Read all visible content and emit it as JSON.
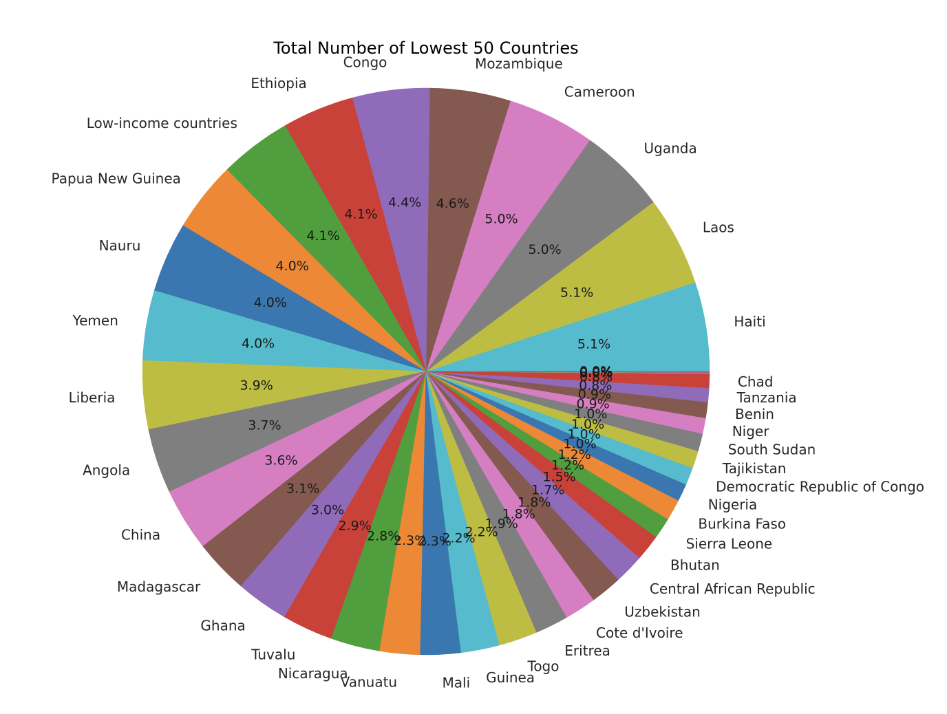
{
  "chart_data": {
    "type": "pie",
    "title": "Total Number of Lowest 50 Countries",
    "start_angle_deg": 0,
    "direction": "counterclockwise",
    "legend": "none",
    "slices": [
      {
        "label": "Haiti",
        "value": 5.1,
        "pct": "5.1%",
        "color": "#56bbcc"
      },
      {
        "label": "Laos",
        "value": 5.1,
        "pct": "5.1%",
        "color": "#bdbd44"
      },
      {
        "label": "Uganda",
        "value": 5.0,
        "pct": "5.0%",
        "color": "#7f7f7f"
      },
      {
        "label": "Cameroon",
        "value": 5.0,
        "pct": "5.0%",
        "color": "#d57ec2"
      },
      {
        "label": "Mozambique",
        "value": 4.6,
        "pct": "4.6%",
        "color": "#845a50"
      },
      {
        "label": "Congo",
        "value": 4.4,
        "pct": "4.4%",
        "color": "#8f6bb9"
      },
      {
        "label": "Ethiopia",
        "value": 4.1,
        "pct": "4.1%",
        "color": "#c8423a"
      },
      {
        "label": "Low-income countries",
        "value": 4.1,
        "pct": "4.1%",
        "color": "#509e3d"
      },
      {
        "label": "Papua New Guinea",
        "value": 4.0,
        "pct": "4.0%",
        "color": "#ed8936"
      },
      {
        "label": "Nauru",
        "value": 4.0,
        "pct": "4.0%",
        "color": "#3a76af"
      },
      {
        "label": "Yemen",
        "value": 4.0,
        "pct": "4.0%",
        "color": "#56bbcc"
      },
      {
        "label": "Liberia",
        "value": 3.9,
        "pct": "3.9%",
        "color": "#bdbd44"
      },
      {
        "label": "Angola",
        "value": 3.7,
        "pct": "3.7%",
        "color": "#7f7f7f"
      },
      {
        "label": "China",
        "value": 3.6,
        "pct": "3.6%",
        "color": "#d57ec2"
      },
      {
        "label": "Madagascar",
        "value": 3.1,
        "pct": "3.1%",
        "color": "#845a50"
      },
      {
        "label": "Ghana",
        "value": 3.0,
        "pct": "3.0%",
        "color": "#8f6bb9"
      },
      {
        "label": "Tuvalu",
        "value": 2.9,
        "pct": "2.9%",
        "color": "#c8423a"
      },
      {
        "label": "Nicaragua",
        "value": 2.8,
        "pct": "2.8%",
        "color": "#509e3d"
      },
      {
        "label": "Vanuatu",
        "value": 2.3,
        "pct": "2.3%",
        "color": "#ed8936"
      },
      {
        "label": "Mali",
        "value": 2.3,
        "pct": "2.3%",
        "color": "#3a76af"
      },
      {
        "label": "Guinea",
        "value": 2.2,
        "pct": "2.2%",
        "color": "#56bbcc"
      },
      {
        "label": "Togo",
        "value": 2.2,
        "pct": "2.2%",
        "color": "#bdbd44"
      },
      {
        "label": "Eritrea",
        "value": 1.9,
        "pct": "1.9%",
        "color": "#7f7f7f"
      },
      {
        "label": "Cote d'Ivoire",
        "value": 1.8,
        "pct": "1.8%",
        "color": "#d57ec2"
      },
      {
        "label": "Uzbekistan",
        "value": 1.8,
        "pct": "1.8%",
        "color": "#845a50"
      },
      {
        "label": "Central African Republic",
        "value": 1.7,
        "pct": "1.7%",
        "color": "#8f6bb9"
      },
      {
        "label": "Bhutan",
        "value": 1.5,
        "pct": "1.5%",
        "color": "#c8423a"
      },
      {
        "label": "Sierra Leone",
        "value": 1.2,
        "pct": "1.2%",
        "color": "#509e3d"
      },
      {
        "label": "Burkina Faso",
        "value": 1.2,
        "pct": "1.2%",
        "color": "#ed8936"
      },
      {
        "label": "Nigeria",
        "value": 1.0,
        "pct": "1.0%",
        "color": "#3a76af"
      },
      {
        "label": "Democratic Republic of Congo",
        "value": 1.0,
        "pct": "1.0%",
        "color": "#56bbcc"
      },
      {
        "label": "Tajikistan",
        "value": 1.0,
        "pct": "1.0%",
        "color": "#bdbd44"
      },
      {
        "label": "South Sudan",
        "value": 1.0,
        "pct": "1.0%",
        "color": "#7f7f7f"
      },
      {
        "label": "Niger",
        "value": 0.9,
        "pct": "0.9%",
        "color": "#d57ec2"
      },
      {
        "label": "Benin",
        "value": 0.9,
        "pct": "0.9%",
        "color": "#845a50"
      },
      {
        "label": "Tanzania",
        "value": 0.8,
        "pct": "0.8%",
        "color": "#8f6bb9"
      },
      {
        "label": "Chad",
        "value": 0.8,
        "pct": "0.8%",
        "color": "#c8423a"
      },
      {
        "label": "",
        "value": 0.01,
        "pct": "0.0%",
        "color": "#509e3d"
      },
      {
        "label": "",
        "value": 0.01,
        "pct": "0.0%",
        "color": "#ed8936"
      },
      {
        "label": "",
        "value": 0.01,
        "pct": "0.0%",
        "color": "#3a76af"
      },
      {
        "label": "",
        "value": 0.01,
        "pct": "0.0%",
        "color": "#56bbcc"
      },
      {
        "label": "",
        "value": 0.01,
        "pct": "0.0%",
        "color": "#bdbd44"
      },
      {
        "label": "",
        "value": 0.01,
        "pct": "0.0%",
        "color": "#7f7f7f"
      },
      {
        "label": "",
        "value": 0.01,
        "pct": "0.0%",
        "color": "#d57ec2"
      },
      {
        "label": "",
        "value": 0.01,
        "pct": "0.0%",
        "color": "#845a50"
      },
      {
        "label": "",
        "value": 0.01,
        "pct": "0.0%",
        "color": "#8f6bb9"
      },
      {
        "label": "",
        "value": 0.01,
        "pct": "0.0%",
        "color": "#c8423a"
      },
      {
        "label": "",
        "value": 0.01,
        "pct": "0.0%",
        "color": "#509e3d"
      },
      {
        "label": "",
        "value": 0.01,
        "pct": "0.0%",
        "color": "#ed8936"
      },
      {
        "label": "",
        "value": 0.01,
        "pct": "0.0%",
        "color": "#3a76af"
      }
    ]
  }
}
